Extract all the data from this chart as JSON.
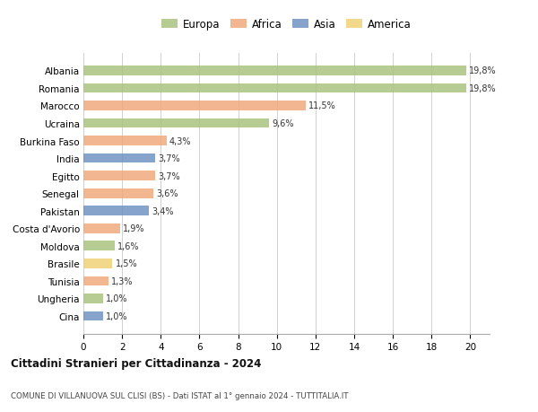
{
  "countries": [
    "Albania",
    "Romania",
    "Marocco",
    "Ucraina",
    "Burkina Faso",
    "India",
    "Egitto",
    "Senegal",
    "Pakistan",
    "Costa d'Avorio",
    "Moldova",
    "Brasile",
    "Tunisia",
    "Ungheria",
    "Cina"
  ],
  "values": [
    19.8,
    19.8,
    11.5,
    9.6,
    4.3,
    3.7,
    3.7,
    3.6,
    3.4,
    1.9,
    1.6,
    1.5,
    1.3,
    1.0,
    1.0
  ],
  "labels": [
    "19,8%",
    "19,8%",
    "11,5%",
    "9,6%",
    "4,3%",
    "3,7%",
    "3,7%",
    "3,6%",
    "3,4%",
    "1,9%",
    "1,6%",
    "1,5%",
    "1,3%",
    "1,0%",
    "1,0%"
  ],
  "continents": [
    "Europa",
    "Europa",
    "Africa",
    "Europa",
    "Africa",
    "Asia",
    "Africa",
    "Africa",
    "Asia",
    "Africa",
    "Europa",
    "America",
    "Africa",
    "Europa",
    "Asia"
  ],
  "colors": {
    "Europa": "#a8c17c",
    "Africa": "#f0a878",
    "Asia": "#6a8fc0",
    "America": "#f0d070"
  },
  "legend_order": [
    "Europa",
    "Africa",
    "Asia",
    "America"
  ],
  "title": "Cittadini Stranieri per Cittadinanza - 2024",
  "subtitle": "COMUNE DI VILLANUOVA SUL CLISI (BS) - Dati ISTAT al 1° gennaio 2024 - TUTTITALIA.IT",
  "xlim": [
    0,
    21
  ],
  "xticks": [
    0,
    2,
    4,
    6,
    8,
    10,
    12,
    14,
    16,
    18,
    20
  ],
  "background_color": "#ffffff",
  "grid_color": "#d0d0d0"
}
